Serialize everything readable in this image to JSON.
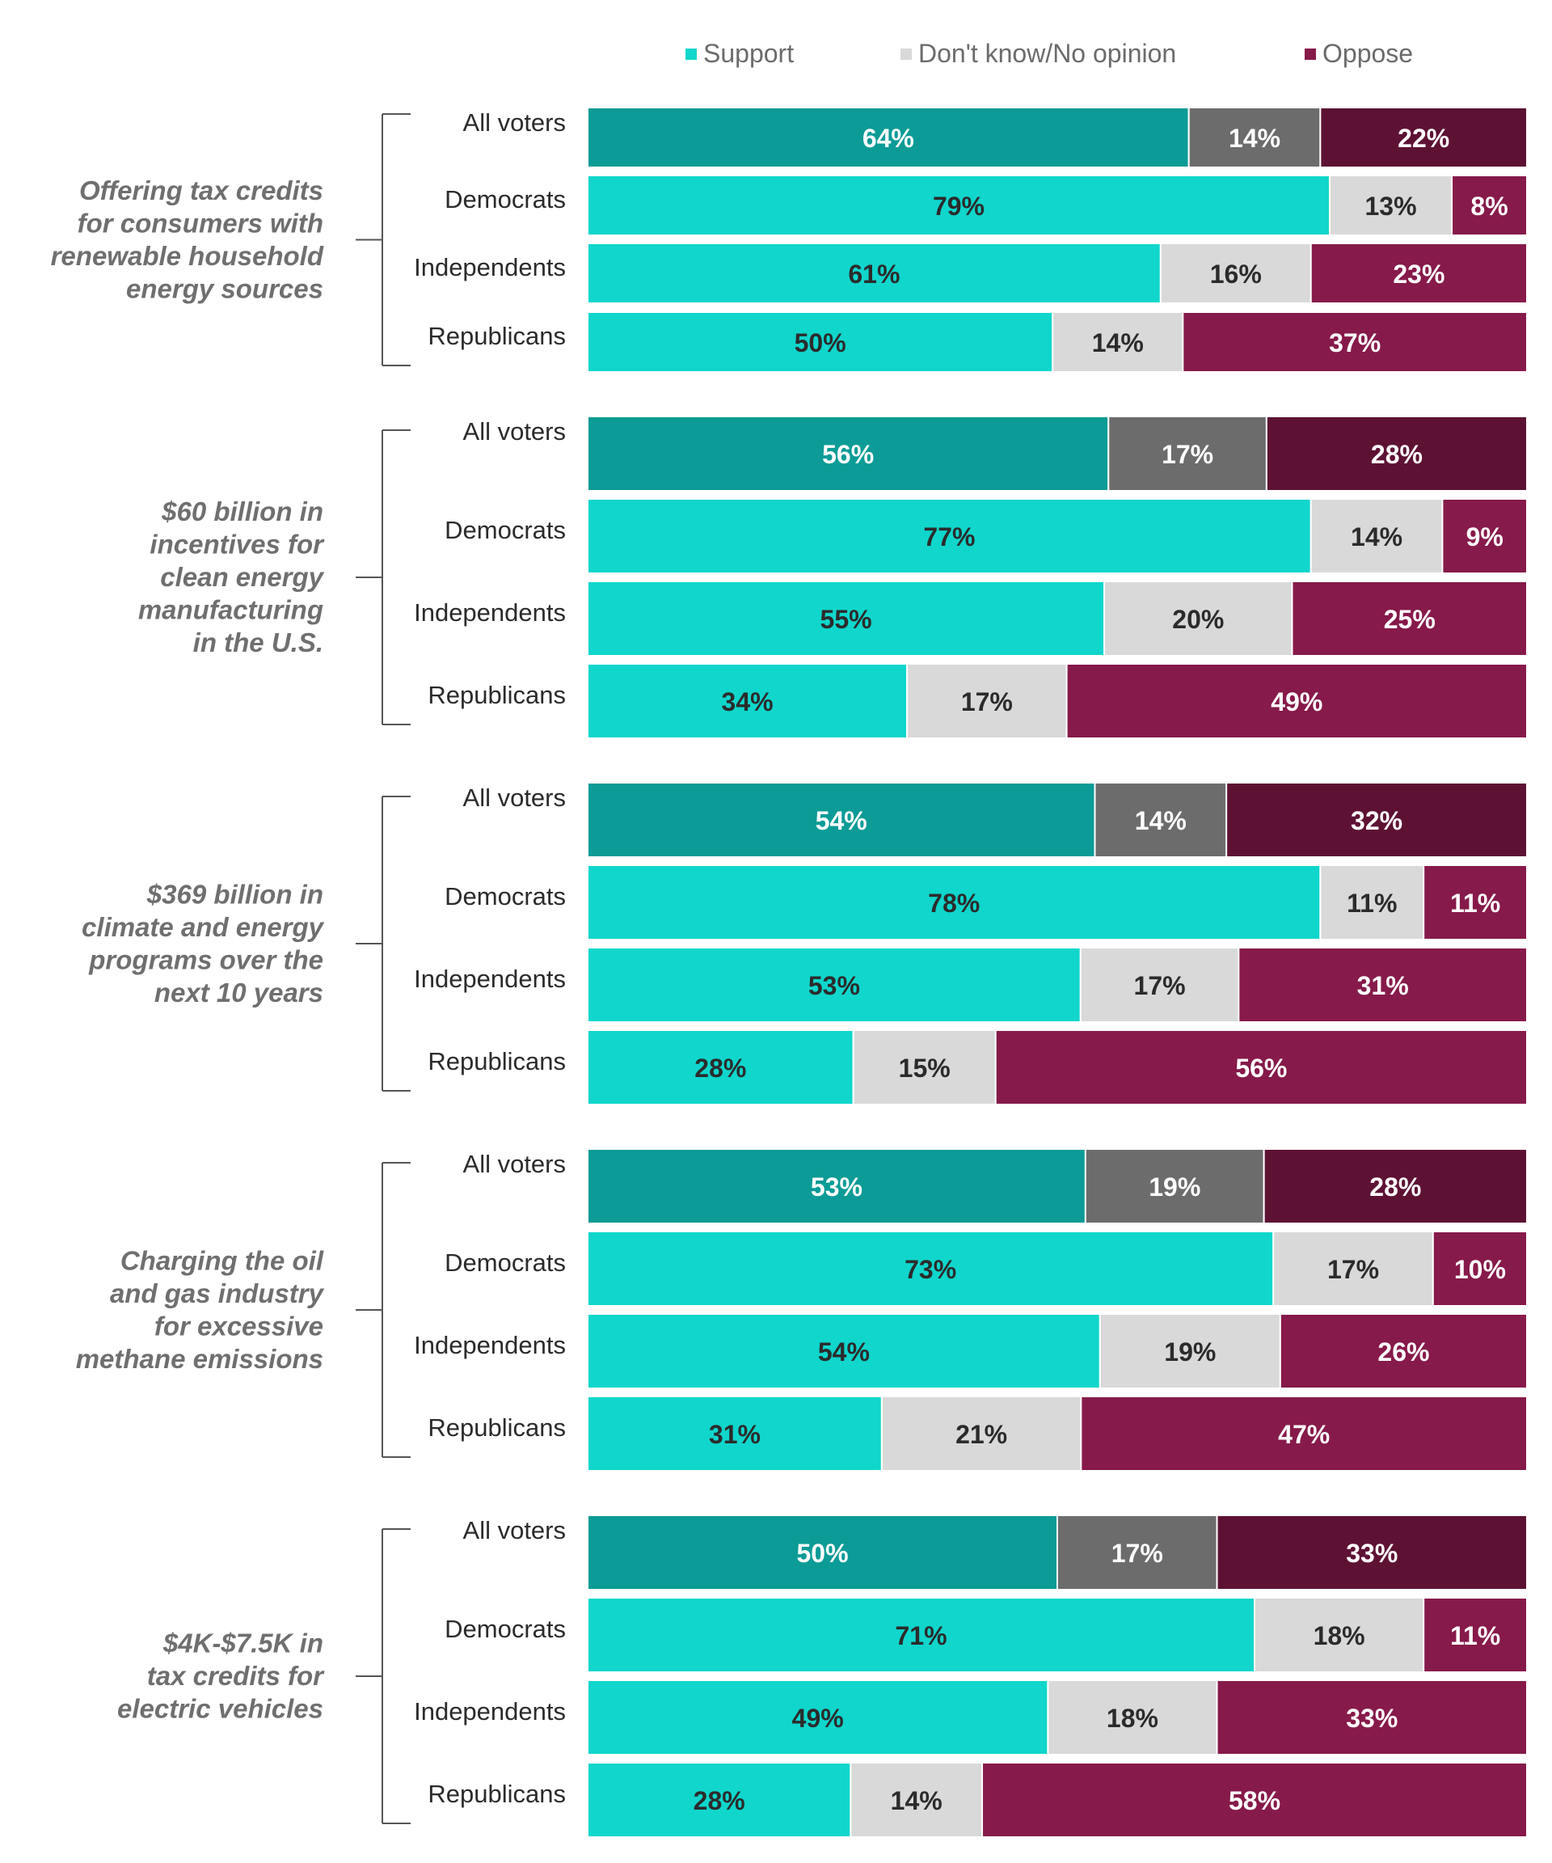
{
  "legend": {
    "support": "Support",
    "dont_know": "Don't know/No opinion",
    "oppose": "Oppose"
  },
  "colors": {
    "support_all": "#0c9b96",
    "support": "#10d6cc",
    "dont_know_all": "#6c6c6c",
    "dont_know": "#d9d9d9",
    "oppose_all": "#5d1234",
    "oppose": "#861a4a",
    "question_text": "#6f6f6f",
    "group_text": "#2b2b2b"
  },
  "chart_data": {
    "type": "bar",
    "orientation": "horizontal",
    "stacked": true,
    "groups": [
      "All voters",
      "Democrats",
      "Independents",
      "Republicans"
    ],
    "series_names": [
      "Support",
      "Don't know/No opinion",
      "Oppose"
    ],
    "questions": [
      {
        "label": "Offering tax credits for consumers with renewable household energy sources",
        "label_lines": [
          "Offering tax credits",
          "for consumers with",
          "renewable household",
          "energy sources"
        ],
        "rows": [
          {
            "group": "All voters",
            "values": [
              64,
              14,
              22
            ],
            "labels": [
              "64%",
              "14%",
              "22%"
            ]
          },
          {
            "group": "Democrats",
            "values": [
              79,
              13,
              8
            ],
            "labels": [
              "79%",
              "13%",
              "8%"
            ]
          },
          {
            "group": "Independents",
            "values": [
              61,
              16,
              23
            ],
            "labels": [
              "61%",
              "16%",
              "23%"
            ]
          },
          {
            "group": "Republicans",
            "values": [
              50,
              14,
              37
            ],
            "labels": [
              "50%",
              "14%",
              "37%"
            ]
          }
        ]
      },
      {
        "label": "$60 billion in incentives for clean energy manufacturing in the U.S.",
        "label_lines": [
          "$60 billion in",
          "incentives for",
          "clean energy",
          "manufacturing",
          "in the U.S."
        ],
        "rows": [
          {
            "group": "All voters",
            "values": [
              56,
              17,
              28
            ],
            "labels": [
              "56%",
              "17%",
              "28%"
            ]
          },
          {
            "group": "Democrats",
            "values": [
              77,
              14,
              9
            ],
            "labels": [
              "77%",
              "14%",
              "9%"
            ]
          },
          {
            "group": "Independents",
            "values": [
              55,
              20,
              25
            ],
            "labels": [
              "55%",
              "20%",
              "25%"
            ]
          },
          {
            "group": "Republicans",
            "values": [
              34,
              17,
              49
            ],
            "labels": [
              "34%",
              "17%",
              "49%"
            ]
          }
        ]
      },
      {
        "label": "$369 billion in climate and energy programs over the next 10 years",
        "label_lines": [
          "$369 billion in",
          "climate and energy",
          "programs over the",
          "next 10 years"
        ],
        "rows": [
          {
            "group": "All voters",
            "values": [
              54,
              14,
              32
            ],
            "labels": [
              "54%",
              "14%",
              "32%"
            ]
          },
          {
            "group": "Democrats",
            "values": [
              78,
              11,
              11
            ],
            "labels": [
              "78%",
              "11%",
              "11%"
            ]
          },
          {
            "group": "Independents",
            "values": [
              53,
              17,
              31
            ],
            "labels": [
              "53%",
              "17%",
              "31%"
            ]
          },
          {
            "group": "Republicans",
            "values": [
              28,
              15,
              56
            ],
            "labels": [
              "28%",
              "15%",
              "56%"
            ]
          }
        ]
      },
      {
        "label": "Charging the oil and gas industry for excessive methane emissions",
        "label_lines": [
          "Charging the oil",
          "and gas industry",
          "for excessive",
          "methane emissions"
        ],
        "rows": [
          {
            "group": "All voters",
            "values": [
              53,
              19,
              28
            ],
            "labels": [
              "53%",
              "19%",
              "28%"
            ]
          },
          {
            "group": "Democrats",
            "values": [
              73,
              17,
              10
            ],
            "labels": [
              "73%",
              "17%",
              "10%"
            ]
          },
          {
            "group": "Independents",
            "values": [
              54,
              19,
              26
            ],
            "labels": [
              "54%",
              "19%",
              "26%"
            ]
          },
          {
            "group": "Republicans",
            "values": [
              31,
              21,
              47
            ],
            "labels": [
              "31%",
              "21%",
              "47%"
            ]
          }
        ]
      },
      {
        "label": "$4K-$7.5K in tax credits for electric vehicles",
        "label_lines": [
          "$4K-$7.5K in",
          "tax credits for",
          "electric vehicles"
        ],
        "rows": [
          {
            "group": "All voters",
            "values": [
              50,
              17,
              33
            ],
            "labels": [
              "50%",
              "17%",
              "33%"
            ]
          },
          {
            "group": "Democrats",
            "values": [
              71,
              18,
              11
            ],
            "labels": [
              "71%",
              "18%",
              "11%"
            ]
          },
          {
            "group": "Independents",
            "values": [
              49,
              18,
              33
            ],
            "labels": [
              "49%",
              "18%",
              "33%"
            ]
          },
          {
            "group": "Republicans",
            "values": [
              28,
              14,
              58
            ],
            "labels": [
              "28%",
              "14%",
              "58%"
            ]
          }
        ]
      }
    ]
  }
}
